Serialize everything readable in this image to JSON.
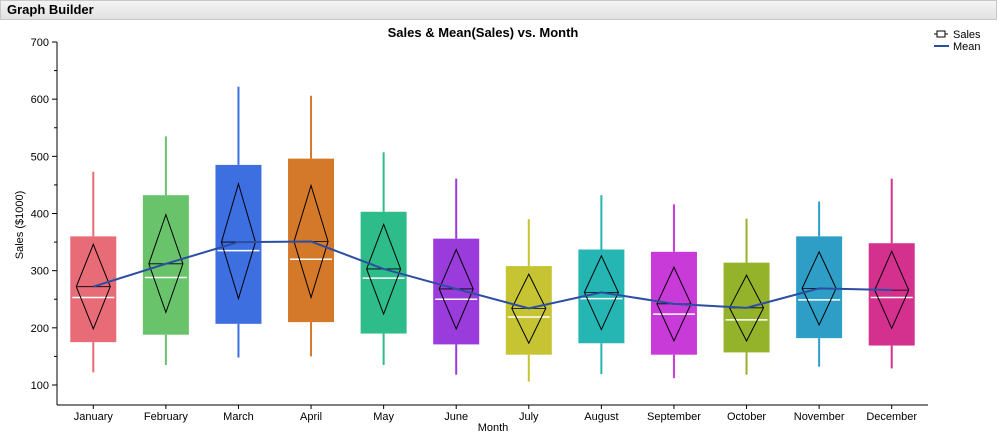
{
  "window": {
    "title": "Graph Builder"
  },
  "chart_data": {
    "type": "box",
    "title": "Sales & Mean(Sales) vs. Month",
    "xlabel": "Month",
    "ylabel": "Sales ($1000)",
    "ylim": [
      65,
      700
    ],
    "yticks": [
      100,
      200,
      300,
      400,
      500,
      600,
      700
    ],
    "categories": [
      "January",
      "February",
      "March",
      "April",
      "May",
      "June",
      "July",
      "August",
      "September",
      "October",
      "November",
      "December"
    ],
    "colors": [
      "#e86b78",
      "#68c36a",
      "#3d6fe0",
      "#d4782a",
      "#2ebc8a",
      "#9a3cdc",
      "#c6c433",
      "#25b5b2",
      "#c93bd9",
      "#95b32a",
      "#2e9ec6",
      "#d4318f"
    ],
    "boxes": [
      {
        "min": 122,
        "q1": 175,
        "median": 253,
        "q3": 360,
        "max": 473,
        "mean": 272,
        "mean_lo": 198,
        "mean_hi": 346
      },
      {
        "min": 135,
        "q1": 188,
        "median": 288,
        "q3": 432,
        "max": 535,
        "mean": 312,
        "mean_lo": 227,
        "mean_hi": 398
      },
      {
        "min": 148,
        "q1": 207,
        "median": 335,
        "q3": 485,
        "max": 622,
        "mean": 350,
        "mean_lo": 251,
        "mean_hi": 452
      },
      {
        "min": 150,
        "q1": 210,
        "median": 320,
        "q3": 496,
        "max": 606,
        "mean": 351,
        "mean_lo": 253,
        "mean_hi": 449
      },
      {
        "min": 135,
        "q1": 190,
        "median": 287,
        "q3": 403,
        "max": 507,
        "mean": 303,
        "mean_lo": 224,
        "mean_hi": 381
      },
      {
        "min": 118,
        "q1": 171,
        "median": 250,
        "q3": 356,
        "max": 461,
        "mean": 268,
        "mean_lo": 198,
        "mean_hi": 337
      },
      {
        "min": 106,
        "q1": 153,
        "median": 219,
        "q3": 308,
        "max": 390,
        "mean": 234,
        "mean_lo": 173,
        "mean_hi": 294
      },
      {
        "min": 119,
        "q1": 173,
        "median": 251,
        "q3": 337,
        "max": 432,
        "mean": 262,
        "mean_lo": 197,
        "mean_hi": 326
      },
      {
        "min": 112,
        "q1": 153,
        "median": 224,
        "q3": 333,
        "max": 416,
        "mean": 242,
        "mean_lo": 177,
        "mean_hi": 306
      },
      {
        "min": 118,
        "q1": 157,
        "median": 214,
        "q3": 314,
        "max": 391,
        "mean": 235,
        "mean_lo": 177,
        "mean_hi": 292
      },
      {
        "min": 132,
        "q1": 182,
        "median": 249,
        "q3": 360,
        "max": 421,
        "mean": 269,
        "mean_lo": 205,
        "mean_hi": 333
      },
      {
        "min": 129,
        "q1": 169,
        "median": 253,
        "q3": 348,
        "max": 461,
        "mean": 266,
        "mean_lo": 199,
        "mean_hi": 334
      }
    ],
    "mean_line_color": "#2b4ea3",
    "grid": false,
    "legend": {
      "position": "right",
      "items": [
        {
          "label": "Sales",
          "marker": "box"
        },
        {
          "label": "Mean",
          "marker": "line"
        }
      ]
    }
  }
}
